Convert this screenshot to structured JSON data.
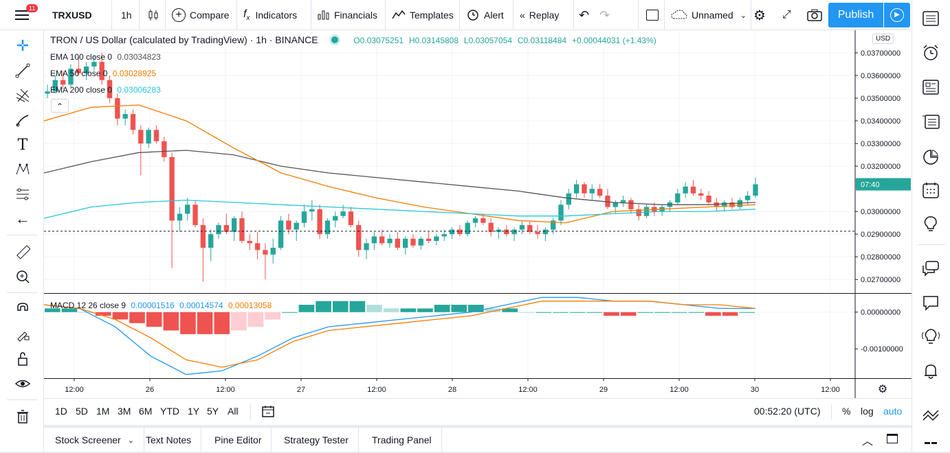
{
  "topbar": {
    "notification_count": "11",
    "symbol": "TRXUSD",
    "interval": "1h",
    "compare": "Compare",
    "indicators": "Indicators",
    "financials": "Financials",
    "templates": "Templates",
    "alert": "Alert",
    "replay": "Replay",
    "layout_name": "Unnamed",
    "publish": "Publish"
  },
  "legend": {
    "title": "TRON / US Dollar (calculated by TradingView) · 1h · BINANCE",
    "o": "O0.03075251",
    "h": "H0.03145808",
    "l": "L0.03057054",
    "c": "C0.03118484",
    "change": "+0.00044031 (+1.43%)"
  },
  "indicators": [
    {
      "label": "EMA 100 close 0",
      "value": "0.03034823",
      "color": "#555555"
    },
    {
      "label": "EMA 50 close 0",
      "value": "0.03028925",
      "color": "#f57c00"
    },
    {
      "label": "EMA 200 close 0",
      "value": "0.03006283",
      "color": "#26c6da"
    }
  ],
  "macd": {
    "label": "MACD 12 26 close 9",
    "v1": "0.00001516",
    "v2": "0.00014574",
    "v3": "0.00013058"
  },
  "price_axis": {
    "currency": "USD",
    "ticks": [
      "0.03700000",
      "0.03600000",
      "0.03500000",
      "0.03400000",
      "0.03300000",
      "0.03200000",
      "0.03000000",
      "0.02900000",
      "0.02800000",
      "0.02700000"
    ],
    "countdown": "07:40",
    "macd_ticks": [
      "0.00000000",
      "-0.00100000"
    ]
  },
  "time_axis": {
    "ticks": [
      "12:00",
      "26",
      "12:00",
      "27",
      "12:00",
      "28",
      "12:00",
      "29",
      "12:00",
      "30",
      "12:00"
    ]
  },
  "bottombar": {
    "ranges": [
      "1D",
      "5D",
      "1M",
      "3M",
      "6M",
      "YTD",
      "1Y",
      "5Y",
      "All"
    ],
    "clock": "00:52:20 (UTC)",
    "percent": "%",
    "log": "log",
    "auto": "auto"
  },
  "panel_tabs": [
    "Stock Screener",
    "Text Notes",
    "Pine Editor",
    "Strategy Tester",
    "Trading Panel"
  ],
  "colors": {
    "up": "#26a69a",
    "down": "#ef5350",
    "accent": "#2196f3"
  },
  "chart_data": {
    "type": "candlestick",
    "title": "TRON / US Dollar (calculated by TradingView) · 1h · BINANCE",
    "y_range": [
      0.0264,
      0.038
    ],
    "candles": [
      [
        0.0352,
        0.0356,
        0.035,
        0.0353
      ],
      [
        0.0353,
        0.036,
        0.0352,
        0.0358
      ],
      [
        0.0358,
        0.0362,
        0.0354,
        0.0356
      ],
      [
        0.0356,
        0.0365,
        0.0355,
        0.0363
      ],
      [
        0.0363,
        0.0368,
        0.036,
        0.0361
      ],
      [
        0.0361,
        0.0366,
        0.0358,
        0.0364
      ],
      [
        0.0364,
        0.0369,
        0.0362,
        0.0366
      ],
      [
        0.0366,
        0.037,
        0.0356,
        0.0358
      ],
      [
        0.0358,
        0.036,
        0.0348,
        0.035
      ],
      [
        0.035,
        0.0352,
        0.0338,
        0.0341
      ],
      [
        0.0341,
        0.0345,
        0.0338,
        0.0343
      ],
      [
        0.0343,
        0.0345,
        0.0334,
        0.0336
      ],
      [
        0.0336,
        0.0338,
        0.0316,
        0.033
      ],
      [
        0.033,
        0.0337,
        0.0328,
        0.0336
      ],
      [
        0.0336,
        0.0338,
        0.033,
        0.0331
      ],
      [
        0.0331,
        0.0333,
        0.0322,
        0.0324
      ],
      [
        0.0324,
        0.0326,
        0.0275,
        0.0296
      ],
      [
        0.0296,
        0.0302,
        0.0291,
        0.0299
      ],
      [
        0.0299,
        0.0306,
        0.0296,
        0.0303
      ],
      [
        0.0303,
        0.0305,
        0.0293,
        0.0294
      ],
      [
        0.0294,
        0.0297,
        0.0269,
        0.0284
      ],
      [
        0.0284,
        0.0292,
        0.0278,
        0.029
      ],
      [
        0.029,
        0.0295,
        0.0288,
        0.0294
      ],
      [
        0.0294,
        0.0299,
        0.029,
        0.0291
      ],
      [
        0.0291,
        0.0298,
        0.0287,
        0.0297
      ],
      [
        0.0297,
        0.03,
        0.0286,
        0.0287
      ],
      [
        0.0287,
        0.029,
        0.0283,
        0.0286
      ],
      [
        0.0286,
        0.0291,
        0.0279,
        0.0283
      ],
      [
        0.0283,
        0.0286,
        0.027,
        0.0281
      ],
      [
        0.0281,
        0.0288,
        0.0277,
        0.0284
      ],
      [
        0.0284,
        0.0298,
        0.0283,
        0.0296
      ],
      [
        0.0296,
        0.0299,
        0.029,
        0.0292
      ],
      [
        0.0292,
        0.0296,
        0.0287,
        0.0295
      ],
      [
        0.0295,
        0.0303,
        0.0293,
        0.03
      ],
      [
        0.03,
        0.0305,
        0.0296,
        0.0301
      ],
      [
        0.0301,
        0.0303,
        0.0288,
        0.029
      ],
      [
        0.029,
        0.0297,
        0.0288,
        0.0296
      ],
      [
        0.0296,
        0.03,
        0.0293,
        0.0298
      ],
      [
        0.0298,
        0.0303,
        0.0297,
        0.03
      ],
      [
        0.03,
        0.0302,
        0.0293,
        0.0294
      ],
      [
        0.0294,
        0.0296,
        0.028,
        0.0283
      ],
      [
        0.0283,
        0.0288,
        0.0279,
        0.0286
      ],
      [
        0.0286,
        0.0291,
        0.0283,
        0.0289
      ],
      [
        0.0289,
        0.0292,
        0.0285,
        0.0286
      ],
      [
        0.0286,
        0.029,
        0.0284,
        0.0288
      ],
      [
        0.0288,
        0.0291,
        0.0283,
        0.0284
      ],
      [
        0.0284,
        0.0289,
        0.0281,
        0.0288
      ],
      [
        0.0288,
        0.029,
        0.0284,
        0.0285
      ],
      [
        0.0285,
        0.0289,
        0.0283,
        0.0288
      ],
      [
        0.0288,
        0.0291,
        0.0286,
        0.0287
      ],
      [
        0.0287,
        0.029,
        0.0285,
        0.0289
      ],
      [
        0.0289,
        0.0292,
        0.0287,
        0.029
      ],
      [
        0.029,
        0.0293,
        0.0288,
        0.0292
      ],
      [
        0.0292,
        0.0294,
        0.0289,
        0.029
      ],
      [
        0.029,
        0.0296,
        0.0289,
        0.0295
      ],
      [
        0.0295,
        0.0298,
        0.0293,
        0.0297
      ],
      [
        0.0297,
        0.0299,
        0.0294,
        0.0295
      ],
      [
        0.0295,
        0.0297,
        0.0289,
        0.0291
      ],
      [
        0.0291,
        0.0293,
        0.0288,
        0.0292
      ],
      [
        0.0292,
        0.0294,
        0.0289,
        0.029
      ],
      [
        0.029,
        0.0293,
        0.0287,
        0.0292
      ],
      [
        0.0292,
        0.0296,
        0.029,
        0.0294
      ],
      [
        0.0294,
        0.0296,
        0.029,
        0.0291
      ],
      [
        0.0291,
        0.0294,
        0.0288,
        0.029
      ],
      [
        0.029,
        0.0293,
        0.0287,
        0.0292
      ],
      [
        0.0292,
        0.0297,
        0.029,
        0.0296
      ],
      [
        0.0296,
        0.0305,
        0.0294,
        0.0303
      ],
      [
        0.0303,
        0.031,
        0.0301,
        0.0308
      ],
      [
        0.0308,
        0.0314,
        0.0306,
        0.0312
      ],
      [
        0.0312,
        0.0313,
        0.0306,
        0.0308
      ],
      [
        0.0308,
        0.0312,
        0.0305,
        0.031
      ],
      [
        0.031,
        0.0312,
        0.0306,
        0.0307
      ],
      [
        0.0307,
        0.031,
        0.0301,
        0.0302
      ],
      [
        0.0302,
        0.0305,
        0.0299,
        0.0304
      ],
      [
        0.0304,
        0.0307,
        0.0302,
        0.0305
      ],
      [
        0.0305,
        0.0306,
        0.0299,
        0.0301
      ],
      [
        0.0301,
        0.0303,
        0.0296,
        0.0298
      ],
      [
        0.0298,
        0.0303,
        0.0297,
        0.0302
      ],
      [
        0.0302,
        0.0304,
        0.0298,
        0.03
      ],
      [
        0.03,
        0.0303,
        0.0298,
        0.0302
      ],
      [
        0.0302,
        0.0305,
        0.03,
        0.0304
      ],
      [
        0.0304,
        0.031,
        0.0303,
        0.0308
      ],
      [
        0.0308,
        0.0313,
        0.0306,
        0.0311
      ],
      [
        0.0311,
        0.0314,
        0.0307,
        0.0308
      ],
      [
        0.0308,
        0.031,
        0.0305,
        0.0307
      ],
      [
        0.0307,
        0.0309,
        0.0303,
        0.0304
      ],
      [
        0.0304,
        0.0306,
        0.03,
        0.0302
      ],
      [
        0.0302,
        0.0305,
        0.03,
        0.0304
      ],
      [
        0.0304,
        0.0306,
        0.0301,
        0.0302
      ],
      [
        0.0302,
        0.0306,
        0.0301,
        0.0305
      ],
      [
        0.0305,
        0.0309,
        0.0303,
        0.0307
      ],
      [
        0.0307,
        0.0315,
        0.0306,
        0.0312
      ]
    ],
    "ema100": [
      0.0317,
      0.0322,
      0.0326,
      0.0327,
      0.0325,
      0.032,
      0.0317,
      0.0315,
      0.0313,
      0.0311,
      0.0309,
      0.0306,
      0.0304,
      0.0303,
      0.0303,
      0.0304
    ],
    "ema50": [
      0.034,
      0.0346,
      0.0347,
      0.034,
      0.0328,
      0.0317,
      0.0311,
      0.0306,
      0.0302,
      0.0299,
      0.0296,
      0.0295,
      0.03,
      0.0301,
      0.0302,
      0.0303
    ],
    "ema200": [
      0.0297,
      0.0302,
      0.0304,
      0.0305,
      0.0304,
      0.0303,
      0.0302,
      0.0301,
      0.03,
      0.0299,
      0.0298,
      0.0298,
      0.0299,
      0.03,
      0.03,
      0.0301
    ],
    "macd_y_range": [
      -0.0018,
      0.0005
    ],
    "macd_hist": [
      0.0001,
      0.0001,
      0.0,
      -0.0001,
      -0.0002,
      -0.0003,
      -0.0004,
      -0.0005,
      -0.0006,
      -0.0006,
      -0.0006,
      -0.0005,
      -0.0004,
      -0.0002,
      0.0,
      0.0002,
      0.0003,
      0.0003,
      0.0003,
      0.0002,
      0.0001,
      0.0001,
      0.0001,
      0.0002,
      0.0002,
      0.0002,
      0.0001,
      0.0001,
      0.0,
      0.0,
      0.0,
      0.0,
      0.0,
      -0.0001,
      -0.0001,
      0.0,
      0.0,
      0.0,
      0.0,
      -0.0001,
      -0.0001,
      0.0
    ],
    "macd_line": [
      0.0002,
      0.0001,
      -0.0004,
      -0.0012,
      -0.0017,
      -0.0016,
      -0.0012,
      -0.0007,
      -0.0004,
      -0.0003,
      -0.0002,
      -0.0001,
      0.0,
      0.0002,
      0.0004,
      0.0004,
      0.0003,
      0.0003,
      0.0002,
      0.0001,
      0.0001
    ],
    "signal_line": [
      0.0002,
      0.0001,
      -0.0002,
      -0.0007,
      -0.0013,
      -0.0015,
      -0.0013,
      -0.0008,
      -0.0005,
      -0.0004,
      -0.0003,
      -0.0002,
      -0.0001,
      0.0001,
      0.0003,
      0.0003,
      0.0003,
      0.0003,
      0.0002,
      0.0002,
      0.0001
    ]
  }
}
